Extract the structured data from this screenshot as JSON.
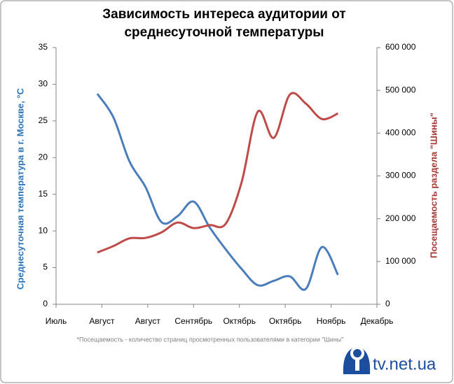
{
  "chart_data": {
    "type": "line",
    "title": "Зависимость интереса аудитории от среднесуточной температуры",
    "ylabel": "Среднесуточная температура в г. Москве, °С",
    "y2label": "Посещаемость раздела \"Шины\"",
    "note": "*Посещаемость - количество  страниц просмотренных пользователями в категории \"Шины\"",
    "logo": "tv.net.ua",
    "x": [
      0.9,
      1.25,
      1.6,
      1.95,
      2.3,
      2.65,
      3.0,
      3.35,
      3.7,
      4.05,
      4.4,
      4.75,
      5.1,
      5.45,
      5.8,
      6.15
    ],
    "xlim": [
      0,
      7
    ],
    "xticks": [
      {
        "value": 0,
        "label": "Июль"
      },
      {
        "value": 1,
        "label": "Август"
      },
      {
        "value": 2,
        "label": "Август"
      },
      {
        "value": 3,
        "label": "Сентябрь"
      },
      {
        "value": 4,
        "label": "Октябрь"
      },
      {
        "value": 5,
        "label": "Октябрь"
      },
      {
        "value": 6,
        "label": "Ноябрь"
      },
      {
        "value": 7,
        "label": "Декабрь"
      }
    ],
    "ylim": [
      0,
      35
    ],
    "yticks": [
      0,
      5,
      10,
      15,
      20,
      25,
      30,
      35
    ],
    "y2lim": [
      0,
      600000
    ],
    "y2ticks": [
      0,
      {
        "value": 100000,
        "label": "100 000"
      },
      {
        "value": 200000,
        "label": "200 000"
      },
      {
        "value": 300000,
        "label": "300 000"
      },
      {
        "value": 400000,
        "label": "400 000"
      },
      {
        "value": 500000,
        "label": "500 000"
      },
      {
        "value": 600000,
        "label": "600 000"
      }
    ],
    "series": [
      {
        "name": "Температура",
        "color": "#4a7ebb",
        "values": [
          28.7,
          25.5,
          19.5,
          16,
          11.2,
          12,
          14,
          10.5,
          7.5,
          4.8,
          2.6,
          3.2,
          3.8,
          2.1,
          7.8,
          4.0
        ]
      },
      {
        "name": "Посещаемость",
        "color": "#be4b48",
        "axis": "y2",
        "values": [
          121000,
          136000,
          154000,
          155000,
          168000,
          191000,
          178000,
          185000,
          188000,
          286000,
          450000,
          389000,
          490000,
          469000,
          433000,
          446000
        ]
      }
    ]
  }
}
